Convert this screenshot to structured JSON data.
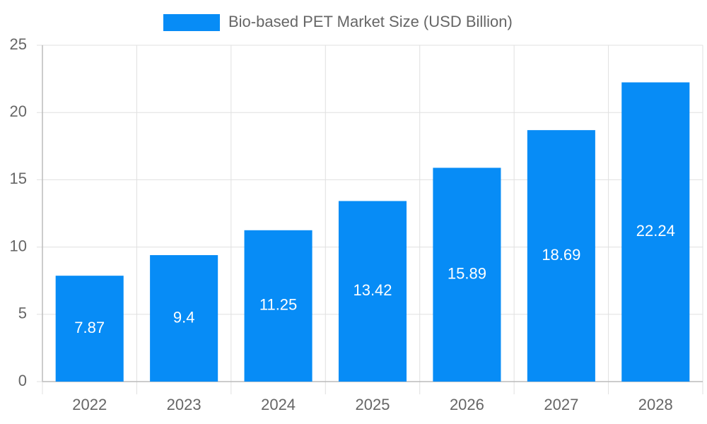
{
  "chart_data": {
    "type": "bar",
    "categories": [
      "2022",
      "2023",
      "2024",
      "2025",
      "2026",
      "2027",
      "2028"
    ],
    "series": [
      {
        "name": "Bio-based PET Market Size (USD Billion)",
        "color": "#078cf6",
        "values": [
          7.87,
          9.4,
          11.25,
          13.42,
          15.89,
          18.69,
          22.24
        ]
      }
    ],
    "ylim": [
      0,
      25
    ],
    "yticks": [
      0,
      5,
      10,
      15,
      20,
      25
    ],
    "grid": true,
    "legend": "top",
    "data_labels": true
  }
}
